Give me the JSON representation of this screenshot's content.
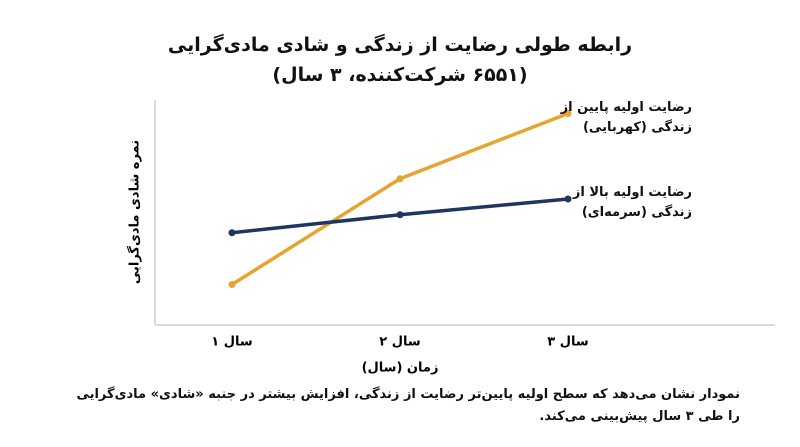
{
  "chart_data": {
    "type": "line",
    "title": "رابطه طولی رضایت از زندگی و شادی مادی‌گرایی",
    "subtitle": "(۶۵۵۱ شرکت‌کننده، ۳ سال)",
    "x_label": "زمان (سال)",
    "y_label": "نمره شادی مادی‌گرایی",
    "categories": [
      "سال ۱",
      "سال ۲",
      "سال ۳"
    ],
    "series": [
      {
        "name": "رضایت اولیه پایین از زندگی (کهربایی)",
        "color": "#e8a430",
        "values": [
          1.8,
          6.5,
          9.4
        ]
      },
      {
        "name": "رضایت اولیه بالا از زندگی (سرمه‌ای)",
        "color": "#1f3562",
        "values": [
          4.1,
          4.9,
          5.6
        ]
      }
    ],
    "ylim": [
      0,
      10
    ],
    "caption": "نمودار نشان می‌دهد که سطح اولیه پایین‌تر رضایت از زندگی، افزایش بیشتر در جنبه «شادی» مادی‌گرایی را طی ۳ سال پیش‌بینی می‌کند."
  }
}
